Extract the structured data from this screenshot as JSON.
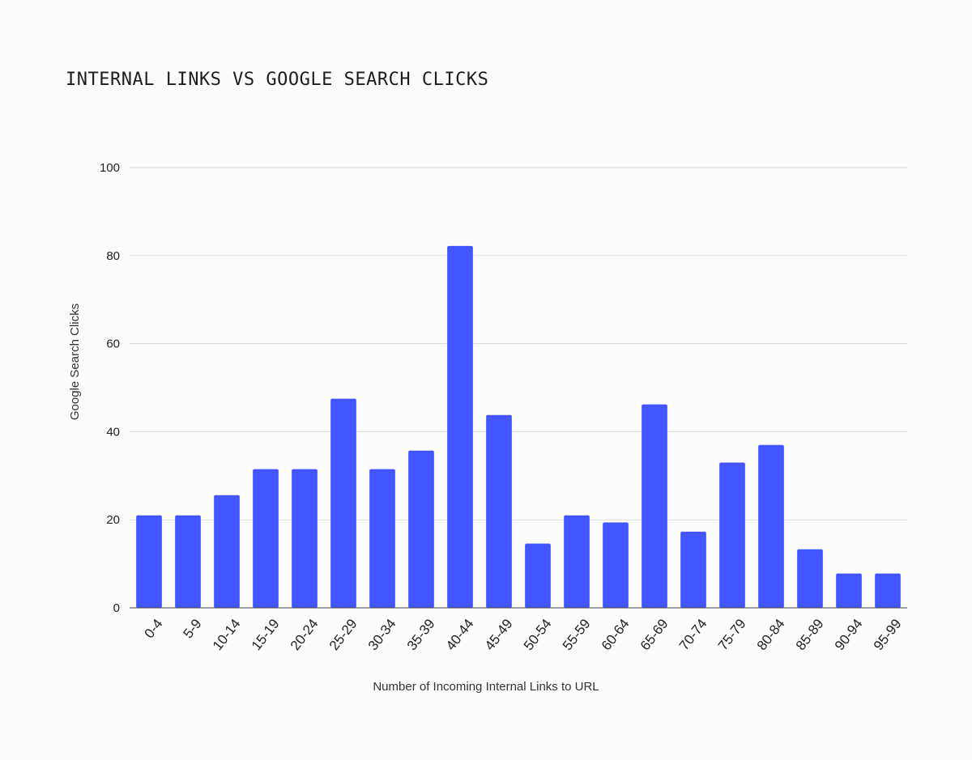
{
  "chart_data": {
    "type": "bar",
    "title": "INTERNAL LINKS VS GOOGLE SEARCH CLICKS",
    "xlabel": "Number of Incoming Internal Links to URL",
    "ylabel": "Google Search Clicks",
    "ylim": [
      0,
      100
    ],
    "yticks": [
      0,
      20,
      40,
      60,
      80,
      100
    ],
    "grid": true,
    "bar_color": "#4355ff",
    "categories": [
      "0-4",
      "5-9",
      "10-14",
      "15-19",
      "20-24",
      "25-29",
      "30-34",
      "35-39",
      "40-44",
      "45-49",
      "50-54",
      "55-59",
      "60-64",
      "65-69",
      "70-74",
      "75-79",
      "80-84",
      "85-89",
      "90-94",
      "95-99"
    ],
    "values": [
      21,
      21,
      25.6,
      31.5,
      31.5,
      47.5,
      31.5,
      35.7,
      82.2,
      43.8,
      14.6,
      21,
      19.4,
      46.2,
      17.3,
      33,
      37,
      13.3,
      7.8,
      7.8
    ]
  }
}
